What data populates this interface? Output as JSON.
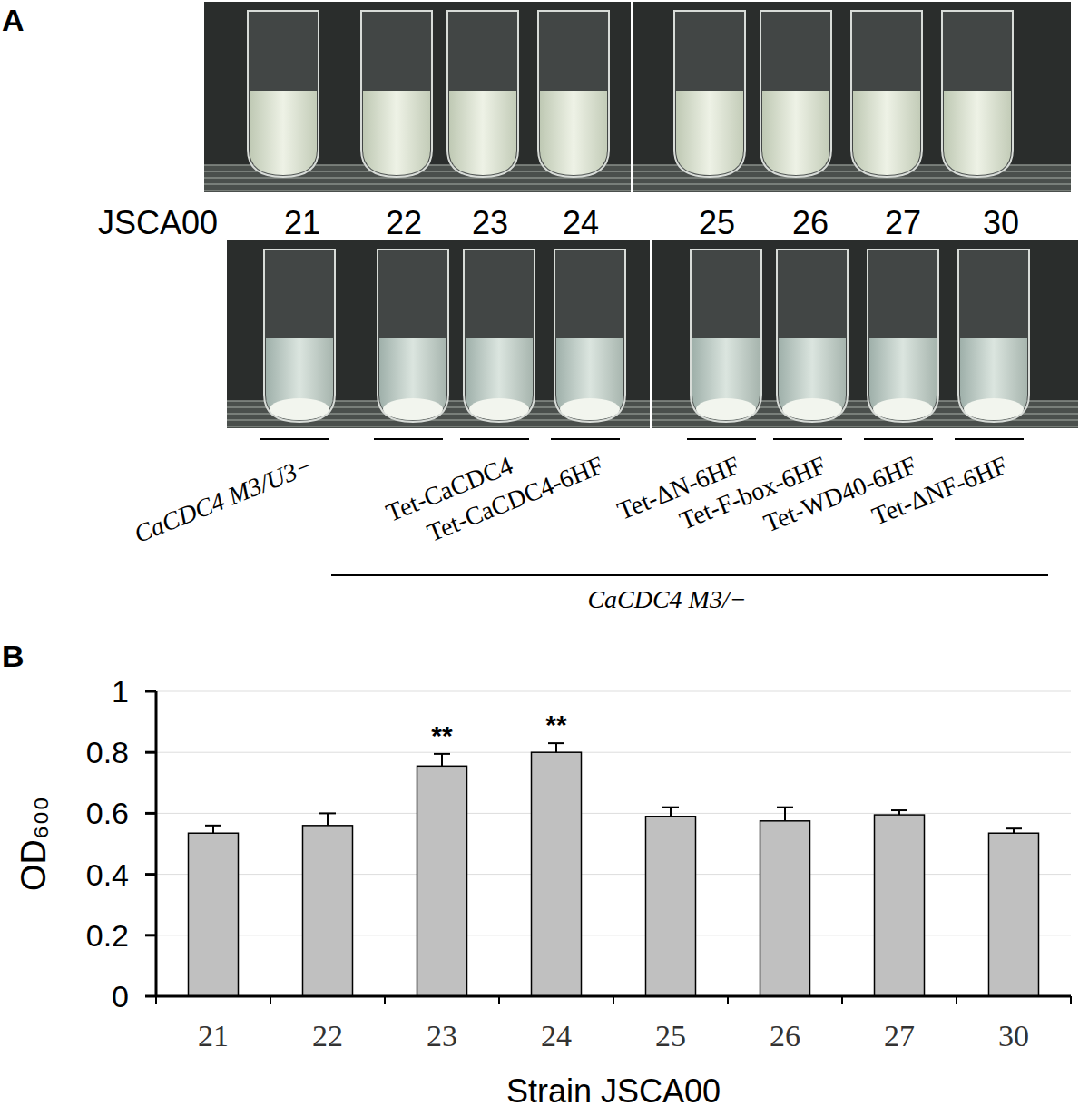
{
  "panel_labels": {
    "a": "A",
    "b": "B"
  },
  "photo": {
    "prefix": "JSCA00",
    "strains": [
      "21",
      "22",
      "23",
      "24",
      "25",
      "26",
      "27",
      "30"
    ],
    "genotypes": [
      "CaCDC4 M3/U3−",
      null,
      "Tet-CaCDC4",
      "Tet-CaCDC4-6HF",
      "Tet-ΔN-6HF",
      "Tet-F-box-6HF",
      "Tet-WD40-6HF",
      "Tet-ΔNF-6HF"
    ],
    "group_label": "CaCDC4 M3/−"
  },
  "chart_data": {
    "type": "bar",
    "categories": [
      "21",
      "22",
      "23",
      "24",
      "25",
      "26",
      "27",
      "30"
    ],
    "values": [
      0.535,
      0.56,
      0.755,
      0.8,
      0.59,
      0.575,
      0.595,
      0.535
    ],
    "errors": [
      0.025,
      0.04,
      0.04,
      0.03,
      0.03,
      0.045,
      0.015,
      0.015
    ],
    "color": "#c0c0c0",
    "xlabel": "Strain JSCA00",
    "ylabel": "OD₆₀₀",
    "ylim": [
      0,
      1
    ],
    "yticks": [
      0,
      0.2,
      0.4,
      0.6,
      0.8,
      1
    ],
    "grid": true,
    "annotations": [
      {
        "category": "23",
        "text": "**"
      },
      {
        "category": "24",
        "text": "**"
      }
    ]
  }
}
